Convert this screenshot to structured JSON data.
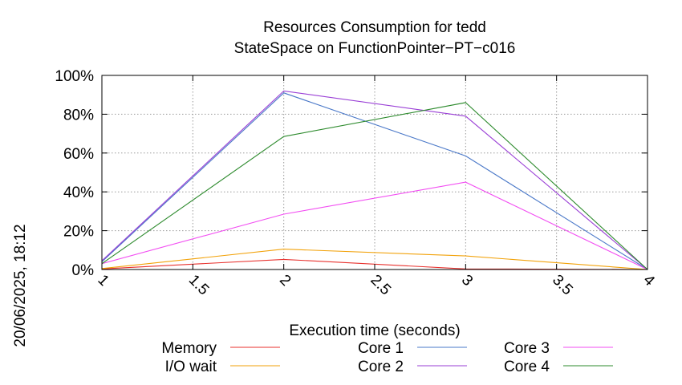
{
  "chart_data": {
    "type": "line",
    "title": "Resources Consumption for tedd",
    "subtitle": "StateSpace on FunctionPointer−PT−c016",
    "xlabel": "Execution time (seconds)",
    "ylabel": "",
    "side_label": "20/06/2025, 18:12",
    "x": [
      1,
      2,
      3,
      4
    ],
    "xlim": [
      1,
      4
    ],
    "ylim": [
      0,
      100
    ],
    "x_ticks": [
      {
        "value": 1,
        "label": "1"
      },
      {
        "value": 1.5,
        "label": "1.5"
      },
      {
        "value": 2,
        "label": "2"
      },
      {
        "value": 2.5,
        "label": "2.5"
      },
      {
        "value": 3,
        "label": "3"
      },
      {
        "value": 3.5,
        "label": "3.5"
      },
      {
        "value": 4,
        "label": "4"
      }
    ],
    "y_ticks": [
      {
        "value": 0,
        "label": "0%"
      },
      {
        "value": 20,
        "label": "20%"
      },
      {
        "value": 40,
        "label": "40%"
      },
      {
        "value": 60,
        "label": "60%"
      },
      {
        "value": 80,
        "label": "80%"
      },
      {
        "value": 100,
        "label": "100%"
      }
    ],
    "grid": true,
    "legend_position": "bottom",
    "series": [
      {
        "name": "Memory",
        "color": "#e8322e",
        "values": [
          0.3,
          5.2,
          0.3,
          0
        ]
      },
      {
        "name": "I/O wait",
        "color": "#f2a20a",
        "values": [
          0.5,
          10.5,
          7,
          0
        ]
      },
      {
        "name": "Core 1",
        "color": "#4a78c8",
        "values": [
          4,
          91,
          58.5,
          0
        ]
      },
      {
        "name": "Core 2",
        "color": "#9a3fd6",
        "values": [
          4.5,
          92,
          79,
          0
        ]
      },
      {
        "name": "Core 3",
        "color": "#f24ef2",
        "values": [
          3,
          28.5,
          45,
          0
        ]
      },
      {
        "name": "Core 4",
        "color": "#2e8b2e",
        "values": [
          3,
          68.5,
          86,
          0
        ]
      }
    ]
  }
}
